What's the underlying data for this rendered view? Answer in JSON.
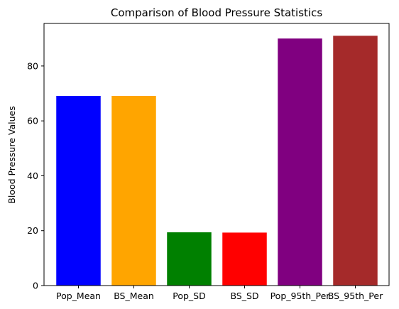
{
  "chart_data": {
    "type": "bar",
    "title": "Comparison of Blood Pressure Statistics",
    "xlabel": "",
    "ylabel": "Blood Pressure Values",
    "categories": [
      "Pop_Mean",
      "BS_Mean",
      "Pop_SD",
      "BS_SD",
      "Pop_95th_Per",
      "BS_95th_Per"
    ],
    "values": [
      69.1,
      69.1,
      19.4,
      19.3,
      90.0,
      91.0
    ],
    "colors": [
      "#0000ff",
      "#ffa500",
      "#008000",
      "#ff0000",
      "#800080",
      "#a52a2a"
    ],
    "ylim": [
      0,
      95.5
    ],
    "yticks": [
      0,
      20,
      40,
      60,
      80
    ],
    "grid": false,
    "legend": "none"
  }
}
